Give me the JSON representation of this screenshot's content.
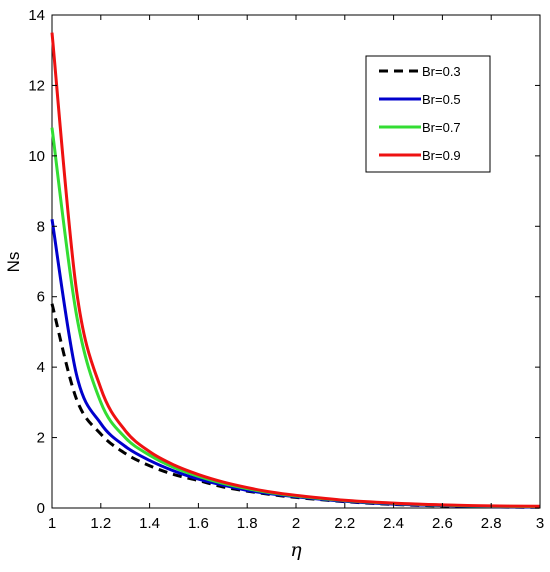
{
  "chart_data": {
    "type": "line",
    "title": "",
    "xlabel": "η",
    "ylabel": "Ns",
    "xlim": [
      1,
      3
    ],
    "ylim": [
      0,
      14
    ],
    "xticks": [
      "1",
      "1.2",
      "1.4",
      "1.6",
      "1.8",
      "2",
      "2.2",
      "2.4",
      "2.6",
      "2.8",
      "3"
    ],
    "yticks": [
      "0",
      "2",
      "4",
      "6",
      "8",
      "10",
      "12",
      "14"
    ],
    "grid": false,
    "legend_position": "top-right",
    "x": [
      1.0,
      1.1,
      1.2,
      1.3,
      1.4,
      1.5,
      1.6,
      1.7,
      1.8,
      1.9,
      2.0,
      2.2,
      2.4,
      2.6,
      2.8,
      3.0
    ],
    "series": [
      {
        "name": "Br=0.3",
        "color": "#000000",
        "dash": "dashed",
        "values": [
          5.8,
          3.1,
          2.1,
          1.55,
          1.2,
          0.95,
          0.78,
          0.6,
          0.48,
          0.38,
          0.3,
          0.18,
          0.1,
          0.06,
          0.03,
          0.02
        ]
      },
      {
        "name": "Br=0.5",
        "color": "#0000cc",
        "dash": "solid",
        "values": [
          8.2,
          3.8,
          2.4,
          1.75,
          1.35,
          1.05,
          0.82,
          0.65,
          0.5,
          0.4,
          0.32,
          0.19,
          0.11,
          0.07,
          0.04,
          0.03
        ]
      },
      {
        "name": "Br=0.7",
        "color": "#33dd33",
        "dash": "solid",
        "values": [
          10.8,
          5.5,
          3.0,
          2.0,
          1.5,
          1.15,
          0.9,
          0.7,
          0.55,
          0.43,
          0.34,
          0.21,
          0.13,
          0.08,
          0.05,
          0.04
        ]
      },
      {
        "name": "Br=0.9",
        "color": "#ee1111",
        "dash": "solid",
        "values": [
          13.5,
          6.2,
          3.4,
          2.2,
          1.6,
          1.22,
          0.95,
          0.74,
          0.58,
          0.45,
          0.36,
          0.22,
          0.14,
          0.09,
          0.06,
          0.05
        ]
      }
    ]
  }
}
